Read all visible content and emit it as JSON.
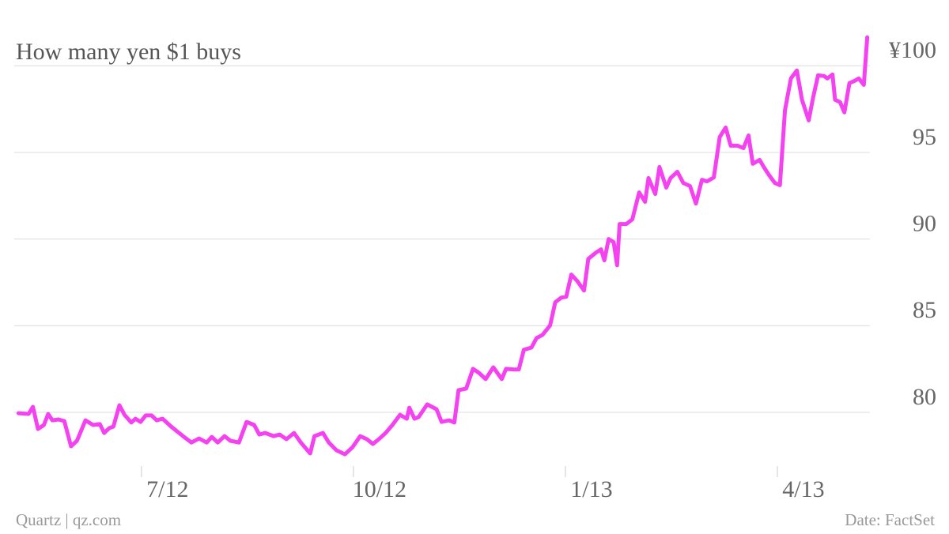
{
  "chart_data": {
    "type": "line",
    "title": "How many yen $1 buys",
    "source": "Date: FactSet",
    "credit": "Quartz | qz.com",
    "color": "#f442f1",
    "grid": true,
    "xlim": [
      2012.35,
      2013.375
    ],
    "ylim": [
      76.9,
      101.7
    ],
    "xticks": [
      {
        "value": 2012.5,
        "label": "7/12"
      },
      {
        "value": 2012.75,
        "label": "10/12"
      },
      {
        "value": 2013.0,
        "label": "1/13"
      },
      {
        "value": 2013.25,
        "label": "4/13"
      }
    ],
    "yticks": [
      80,
      85,
      90,
      95,
      {
        "value": 100,
        "label": "¥100"
      }
    ],
    "x": [
      2012.355,
      2012.367,
      2012.372,
      2012.378,
      2012.385,
      2012.39,
      2012.395,
      2012.402,
      2012.409,
      2012.417,
      2012.424,
      2012.434,
      2012.443,
      2012.451,
      2012.456,
      2012.462,
      2012.467,
      2012.474,
      2012.48,
      2012.488,
      2012.493,
      2012.499,
      2012.505,
      2012.512,
      2012.518,
      2012.525,
      2012.535,
      2012.542,
      2012.549,
      2012.559,
      2012.568,
      2012.577,
      2012.583,
      2012.59,
      2012.598,
      2012.605,
      2012.615,
      2012.624,
      2012.633,
      2012.639,
      2012.646,
      2012.656,
      2012.663,
      2012.671,
      2012.68,
      2012.688,
      2012.699,
      2012.704,
      2012.714,
      2012.721,
      2012.73,
      2012.74,
      2012.749,
      2012.758,
      2012.766,
      2012.773,
      2012.781,
      2012.788,
      2012.796,
      2012.805,
      2012.813,
      2012.816,
      2012.822,
      2012.827,
      2012.837,
      2012.848,
      2012.854,
      2012.863,
      2012.869,
      2012.874,
      2012.883,
      2012.891,
      2012.898,
      2012.906,
      2012.915,
      2012.925,
      2012.93,
      2012.939,
      2012.945,
      2012.951,
      2012.96,
      2012.966,
      2012.973,
      2012.982,
      2012.988,
      2012.995,
      2013.001,
      2013.007,
      2013.014,
      2013.022,
      2013.027,
      2013.036,
      2013.042,
      2013.046,
      2013.051,
      2013.057,
      2013.061,
      2013.064,
      2013.072,
      2013.079,
      2013.087,
      2013.094,
      2013.098,
      2013.106,
      2013.111,
      2013.119,
      2013.124,
      2013.132,
      2013.139,
      2013.147,
      2013.154,
      2013.161,
      2013.167,
      2013.175,
      2013.182,
      2013.189,
      2013.195,
      2013.203,
      2013.21,
      2013.216,
      2013.221,
      2013.229,
      2013.234,
      2013.24,
      2013.247,
      2013.253,
      2013.259,
      2013.266,
      2013.273,
      2013.279,
      2013.287,
      2013.292,
      2013.298,
      2013.305,
      2013.309,
      2013.315,
      2013.318,
      2013.324,
      2013.329,
      2013.335,
      2013.341,
      2013.346,
      2013.352,
      2013.356
    ],
    "values": [
      79.95,
      79.91,
      80.32,
      79.04,
      79.27,
      79.91,
      79.54,
      79.59,
      79.5,
      78.04,
      78.36,
      79.54,
      79.27,
      79.32,
      78.81,
      79.09,
      79.18,
      80.41,
      79.86,
      79.41,
      79.63,
      79.45,
      79.82,
      79.82,
      79.54,
      79.63,
      79.18,
      78.9,
      78.63,
      78.26,
      78.49,
      78.26,
      78.58,
      78.26,
      78.63,
      78.36,
      78.26,
      79.45,
      79.27,
      78.72,
      78.81,
      78.63,
      78.72,
      78.45,
      78.81,
      78.26,
      77.63,
      78.63,
      78.81,
      78.26,
      77.81,
      77.58,
      77.99,
      78.63,
      78.45,
      78.17,
      78.49,
      78.81,
      79.27,
      79.86,
      79.63,
      80.27,
      79.63,
      79.73,
      80.46,
      80.18,
      79.45,
      79.54,
      79.41,
      81.28,
      81.37,
      82.51,
      82.28,
      81.92,
      82.6,
      81.92,
      82.51,
      82.47,
      82.47,
      83.61,
      83.74,
      84.29,
      84.47,
      85.02,
      86.35,
      86.62,
      86.67,
      87.95,
      87.58,
      87.03,
      88.86,
      89.22,
      89.41,
      88.77,
      90.0,
      89.82,
      88.49,
      90.87,
      90.87,
      91.14,
      92.69,
      92.15,
      93.52,
      92.6,
      94.16,
      92.97,
      93.52,
      93.88,
      93.24,
      93.06,
      92.05,
      93.42,
      93.33,
      93.56,
      95.89,
      96.44,
      95.39,
      95.39,
      95.25,
      95.98,
      94.34,
      94.57,
      94.16,
      93.7,
      93.24,
      93.11,
      97.44,
      99.27,
      99.73,
      98.04,
      96.85,
      98.13,
      99.45,
      99.41,
      99.27,
      99.5,
      98.04,
      97.9,
      97.31,
      99.0,
      99.13,
      99.27,
      98.9,
      101.64
    ]
  }
}
